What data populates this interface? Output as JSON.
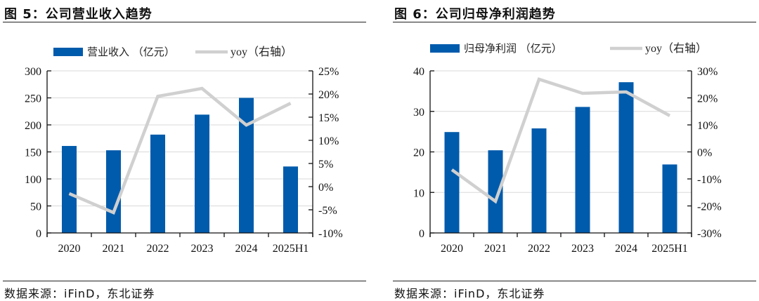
{
  "chart_data": [
    {
      "type": "bar",
      "figure_label": "图 5：公司营业收入趋势",
      "title": "公司营业收入趋势",
      "source": "数据来源：iFinD，东北证券",
      "categories": [
        "2020",
        "2021",
        "2022",
        "2023",
        "2024",
        "2025H1"
      ],
      "series": [
        {
          "name": "营业收入（亿元）",
          "type": "bar",
          "axis": "left",
          "color": "#005BAC",
          "values": [
            161,
            153,
            182,
            219,
            250,
            123
          ]
        },
        {
          "name": "yoy（右轴）",
          "type": "line",
          "axis": "right",
          "color": "#D0D0D0",
          "values": [
            -1.5,
            -5.6,
            19.5,
            21.2,
            13.3,
            18.0
          ]
        }
      ],
      "left_axis": {
        "ylim": [
          0,
          300
        ],
        "ticks": [
          0,
          50,
          100,
          150,
          200,
          250,
          300
        ],
        "tick_labels": [
          "0",
          "50",
          "100",
          "150",
          "200",
          "250",
          "300"
        ]
      },
      "right_axis": {
        "ylim": [
          -10,
          25
        ],
        "ticks": [
          -10,
          -5,
          0,
          5,
          10,
          15,
          20,
          25
        ],
        "tick_labels": [
          "-10%",
          "-5%",
          "0%",
          "5%",
          "10%",
          "15%",
          "20%",
          "25%"
        ]
      },
      "grid": true,
      "legend": "top-center",
      "xlabel": "",
      "ylabel": ""
    },
    {
      "type": "bar",
      "figure_label": "图 6：公司归母净利润趋势",
      "title": "公司归母净利润趋势",
      "source": "数据来源：iFinD，东北证券",
      "categories": [
        "2020",
        "2021",
        "2022",
        "2023",
        "2024",
        "2025H1"
      ],
      "series": [
        {
          "name": "归母净利润（亿元）",
          "type": "bar",
          "axis": "left",
          "color": "#005BAC",
          "values": [
            24.9,
            20.4,
            25.8,
            31.1,
            37.2,
            16.9
          ]
        },
        {
          "name": "yoy（右轴）",
          "type": "line",
          "axis": "right",
          "color": "#D0D0D0",
          "values": [
            -6.6,
            -18.3,
            26.9,
            21.7,
            22.2,
            13.4
          ]
        }
      ],
      "left_axis": {
        "ylim": [
          0,
          40
        ],
        "ticks": [
          0,
          10,
          20,
          30,
          40
        ],
        "tick_labels": [
          "0",
          "10",
          "20",
          "30",
          "40"
        ]
      },
      "right_axis": {
        "ylim": [
          -30,
          30
        ],
        "ticks": [
          -30,
          -20,
          -10,
          0,
          10,
          20,
          30
        ],
        "tick_labels": [
          "-30%",
          "-20%",
          "-10%",
          "0%",
          "10%",
          "20%",
          "30%"
        ]
      },
      "grid": true,
      "legend": "top-center",
      "xlabel": "",
      "ylabel": ""
    }
  ]
}
